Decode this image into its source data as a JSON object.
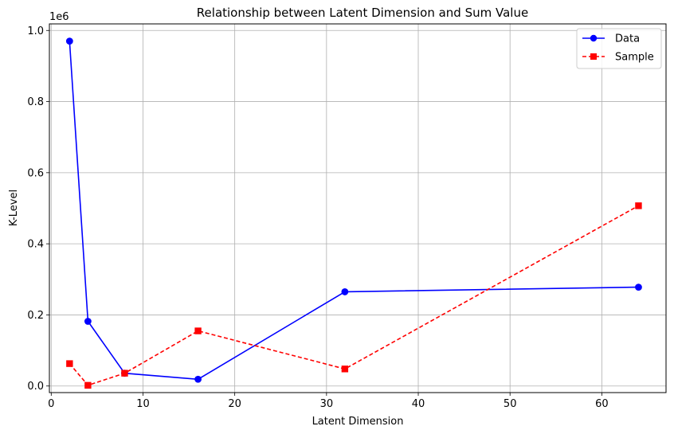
{
  "chart_data": {
    "type": "line",
    "title": "Relationship between Latent Dimension and Sum Value",
    "xlabel": "Latent Dimension",
    "ylabel": "K-Level",
    "y_offset_text": "1e6",
    "xlim": [
      -0.2,
      67.0
    ],
    "ylim": [
      -0.0185,
      1.0185
    ],
    "x_ticks": [
      "0",
      "10",
      "20",
      "30",
      "40",
      "50",
      "60"
    ],
    "x_tick_values": [
      0,
      10,
      20,
      30,
      40,
      50,
      60
    ],
    "y_ticks": [
      "0.0",
      "0.2",
      "0.4",
      "0.6",
      "0.8",
      "1.0"
    ],
    "y_tick_values": [
      0.0,
      0.2,
      0.4,
      0.6,
      0.8,
      1.0
    ],
    "grid": true,
    "legend_position": "top-right",
    "series": [
      {
        "name": "Data",
        "color": "#0000ff",
        "marker": "circle",
        "linestyle": "solid",
        "x": [
          2,
          4,
          8,
          16,
          32,
          64
        ],
        "y": [
          0.97,
          0.182,
          0.036,
          0.019,
          0.265,
          0.278
        ]
      },
      {
        "name": "Sample",
        "color": "#ff0000",
        "marker": "square",
        "linestyle": "dashed",
        "x": [
          2,
          4,
          8,
          16,
          32,
          64
        ],
        "y": [
          0.063,
          0.002,
          0.036,
          0.155,
          0.048,
          0.507
        ]
      }
    ]
  }
}
